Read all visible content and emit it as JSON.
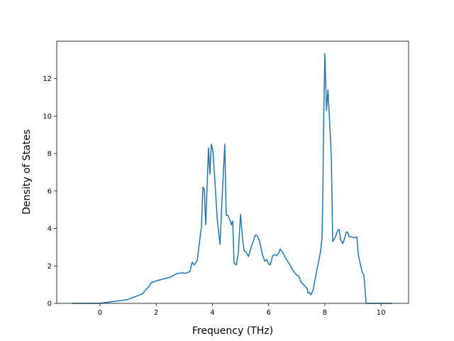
{
  "chart_data": {
    "type": "line",
    "x_label": "Frequency (THz)",
    "y_label": "Density of States",
    "x": [
      -0.98,
      0,
      0.98,
      1.5,
      1.74,
      1.82,
      2.0,
      2.5,
      2.75,
      2.95,
      3.05,
      3.2,
      3.28,
      3.36,
      3.46,
      3.54,
      3.61,
      3.66,
      3.71,
      3.76,
      3.86,
      3.91,
      3.96,
      4.02,
      4.09,
      4.17,
      4.22,
      4.27,
      4.34,
      4.44,
      4.49,
      4.55,
      4.65,
      4.67,
      4.72,
      4.77,
      4.85,
      4.92,
      5.0,
      5.08,
      5.13,
      5.2,
      5.28,
      5.4,
      5.53,
      5.6,
      5.68,
      5.76,
      5.86,
      5.93,
      6.0,
      6.06,
      6.14,
      6.2,
      6.29,
      6.36,
      6.41,
      6.49,
      6.59,
      6.74,
      6.87,
      7.0,
      7.07,
      7.15,
      7.3,
      7.37,
      7.4,
      7.45,
      7.5,
      7.58,
      7.68,
      7.8,
      7.85,
      7.9,
      7.93,
      7.95,
      8.0,
      8.06,
      8.11,
      8.16,
      8.23,
      8.28,
      8.36,
      8.46,
      8.51,
      8.56,
      8.64,
      8.71,
      8.76,
      8.81,
      8.86,
      8.96,
      9.04,
      9.14,
      9.19,
      9.32,
      9.39,
      9.47,
      9.82,
      10.4
    ],
    "series": [
      {
        "color": "#1f77b4",
        "values": [
          0,
          0,
          0.2,
          0.5,
          0.9,
          1.1,
          1.2,
          1.4,
          1.6,
          1.63,
          1.6,
          1.7,
          2.2,
          2.05,
          2.3,
          3.3,
          4.1,
          6.2,
          6.1,
          4.2,
          8.3,
          6.9,
          8.5,
          8.1,
          6.5,
          4.5,
          3.8,
          3.15,
          5.5,
          8.5,
          4.7,
          4.7,
          4.35,
          4.2,
          4.4,
          2.15,
          2.05,
          2.7,
          4.75,
          3.3,
          2.8,
          2.75,
          2.5,
          3.1,
          3.65,
          3.6,
          3.3,
          2.7,
          2.25,
          2.35,
          2.1,
          2.05,
          2.55,
          2.6,
          2.55,
          2.7,
          2.9,
          2.75,
          2.45,
          2.1,
          1.75,
          1.5,
          1.45,
          1.15,
          0.9,
          0.8,
          0.55,
          0.6,
          0.45,
          0.7,
          1.5,
          2.4,
          2.8,
          3.5,
          6.0,
          9.0,
          13.35,
          10.3,
          11.4,
          10.0,
          7.8,
          3.3,
          3.5,
          3.9,
          3.95,
          3.4,
          3.2,
          3.5,
          3.8,
          3.8,
          3.55,
          3.55,
          3.5,
          3.55,
          2.6,
          1.7,
          1.5,
          0,
          0,
          0
        ]
      }
    ],
    "xlim": [
      -1.54,
      10.98
    ],
    "xticks": [
      0,
      2,
      4,
      6,
      8,
      10
    ],
    "ylim": [
      0,
      14
    ],
    "yticks": [
      0,
      2,
      4,
      6,
      8,
      10,
      12
    ]
  }
}
